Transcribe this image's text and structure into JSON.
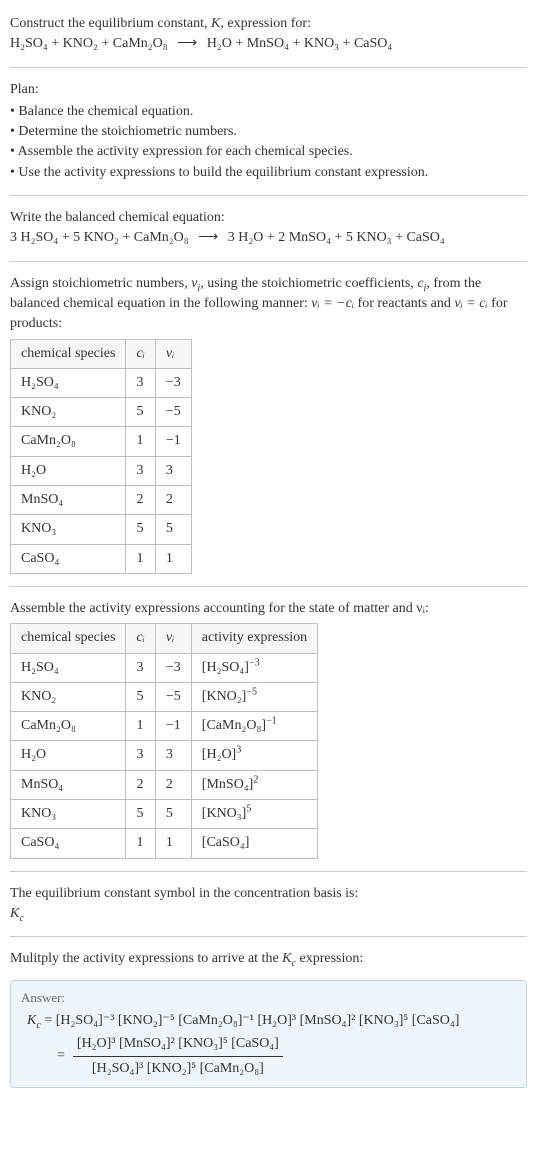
{
  "intro": {
    "line1": "Construct the equilibrium constant, ",
    "Ksym": "K",
    "line1b": ", expression for:",
    "equation_lhs": "H₂SO₄ + KNO₂ + CaMn₂O₈",
    "arrow": "⟶",
    "equation_rhs": "H₂O + MnSO₄ + KNO₃ + CaSO₄"
  },
  "plan": {
    "title": "Plan:",
    "items": [
      "Balance the chemical equation.",
      "Determine the stoichiometric numbers.",
      "Assemble the activity expression for each chemical species.",
      "Use the activity expressions to build the equilibrium constant expression."
    ]
  },
  "balanced": {
    "title": "Write the balanced chemical equation:",
    "lhs": "3 H₂SO₄ + 5 KNO₂ + CaMn₂O₈",
    "arrow": "⟶",
    "rhs": "3 H₂O + 2 MnSO₄ + 5 KNO₃ + CaSO₄"
  },
  "assign": {
    "text1": "Assign stoichiometric numbers, ",
    "nu": "ν",
    "sub_i": "i",
    "text2": ", using the stoichiometric coefficients, ",
    "c": "c",
    "text3": ", from the balanced chemical equation in the following manner: ",
    "rel1": "νᵢ = −cᵢ",
    "text4": " for reactants and ",
    "rel2": "νᵢ = cᵢ",
    "text5": " for products:"
  },
  "table1": {
    "headers": [
      "chemical species",
      "cᵢ",
      "νᵢ"
    ],
    "rows": [
      [
        "H₂SO₄",
        "3",
        "−3"
      ],
      [
        "KNO₂",
        "5",
        "−5"
      ],
      [
        "CaMn₂O₈",
        "1",
        "−1"
      ],
      [
        "H₂O",
        "3",
        "3"
      ],
      [
        "MnSO₄",
        "2",
        "2"
      ],
      [
        "KNO₃",
        "5",
        "5"
      ],
      [
        "CaSO₄",
        "1",
        "1"
      ]
    ]
  },
  "assemble": "Assemble the activity expressions accounting for the state of matter and νᵢ:",
  "table2": {
    "headers": [
      "chemical species",
      "cᵢ",
      "νᵢ",
      "activity expression"
    ],
    "rows": [
      {
        "sp": "H₂SO₄",
        "c": "3",
        "v": "−3",
        "ae": "[H₂SO₄]",
        "exp": "−3"
      },
      {
        "sp": "KNO₂",
        "c": "5",
        "v": "−5",
        "ae": "[KNO₂]",
        "exp": "−5"
      },
      {
        "sp": "CaMn₂O₈",
        "c": "1",
        "v": "−1",
        "ae": "[CaMn₂O₈]",
        "exp": "−1"
      },
      {
        "sp": "H₂O",
        "c": "3",
        "v": "3",
        "ae": "[H₂O]",
        "exp": "3"
      },
      {
        "sp": "MnSO₄",
        "c": "2",
        "v": "2",
        "ae": "[MnSO₄]",
        "exp": "2"
      },
      {
        "sp": "KNO₃",
        "c": "5",
        "v": "5",
        "ae": "[KNO₃]",
        "exp": "5"
      },
      {
        "sp": "CaSO₄",
        "c": "1",
        "v": "1",
        "ae": "[CaSO₄]",
        "exp": ""
      }
    ]
  },
  "eqconst": {
    "line1": "The equilibrium constant symbol in the concentration basis is:",
    "symbol": "K",
    "sub": "c"
  },
  "multiply": "Mulitply the activity expressions to arrive at the Kc expression:",
  "answer": {
    "label": "Answer:",
    "kc": "K",
    "kcsub": "c",
    "line1": "= [H₂SO₄]⁻³ [KNO₂]⁻⁵ [CaMn₂O₈]⁻¹ [H₂O]³ [MnSO₄]² [KNO₃]⁵ [CaSO₄]",
    "frac_num": "[H₂O]³ [MnSO₄]² [KNO₃]⁵ [CaSO₄]",
    "frac_den": "[H₂SO₄]³ [KNO₂]⁵ [CaMn₂O₈]",
    "eq": "="
  }
}
